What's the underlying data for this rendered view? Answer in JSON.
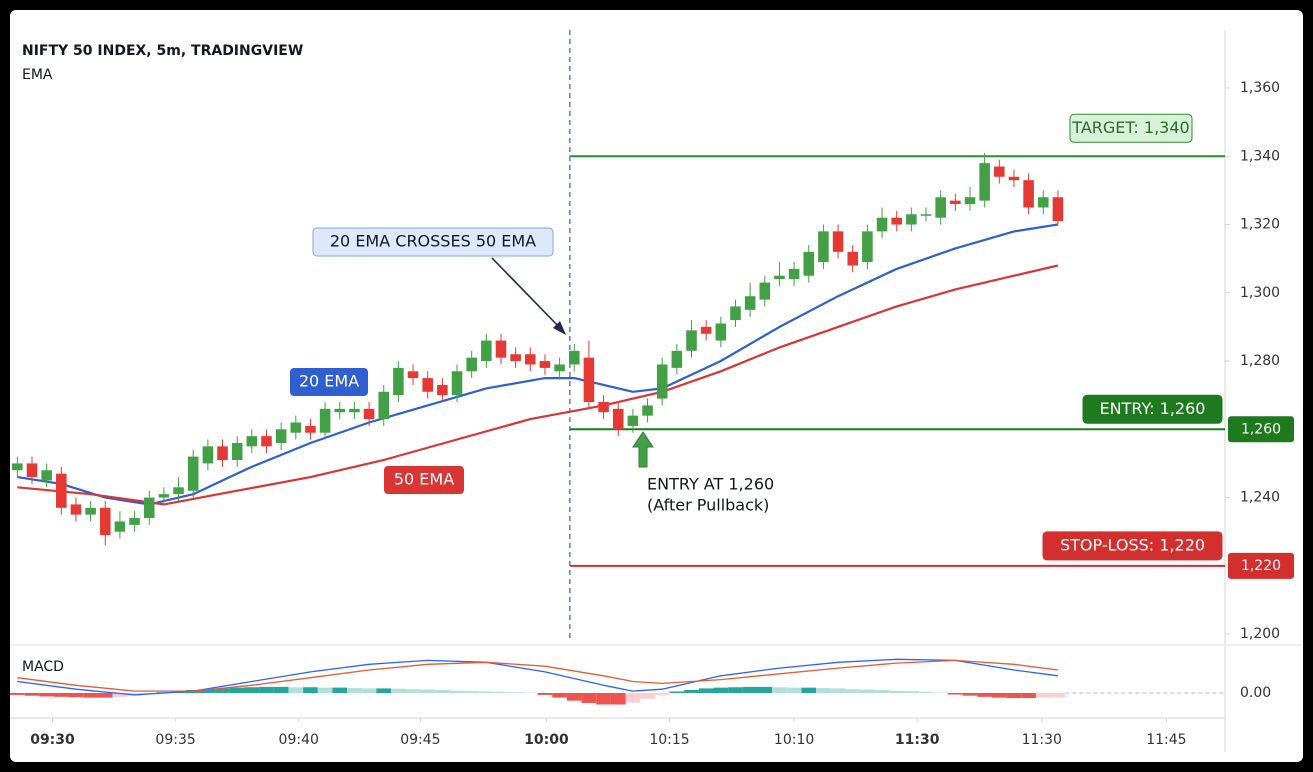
{
  "chart_data": {
    "type": "candlestick",
    "title": "NIFTY 50 INDEX, 5m, TRADINGVIEW",
    "subtitle": "EMA",
    "xlim": [
      -0.5,
      82.4
    ],
    "xticks": [
      {
        "value": 2.4,
        "label": "09:30"
      },
      {
        "value": 10.8,
        "label": "09:35"
      },
      {
        "value": 19.2,
        "label": "09:40"
      },
      {
        "value": 27.5,
        "label": "09:45"
      },
      {
        "value": 36.1,
        "label": "10:00"
      },
      {
        "value": 44.5,
        "label": "10:15"
      },
      {
        "value": 53,
        "label": "10:10"
      },
      {
        "value": 61.4,
        "label": "11:30"
      },
      {
        "value": 69.9,
        "label": "11:30"
      },
      {
        "value": 78.4,
        "label": "11:45"
      }
    ],
    "ylim": [
      1196.8,
      1377
    ],
    "yticks": [
      {
        "value": 1200,
        "label": "1,200"
      },
      {
        "value": 1220,
        "label": "1,220"
      },
      {
        "value": 1240,
        "label": "1,240"
      },
      {
        "value": 1260,
        "label": "1,260"
      },
      {
        "value": 1280,
        "label": "1,280"
      },
      {
        "value": 1300,
        "label": "1,300"
      },
      {
        "value": 1320,
        "label": "1,320"
      },
      {
        "value": 1340,
        "label": "1,340"
      },
      {
        "value": 1360,
        "label": "1,360"
      }
    ],
    "up_color": "#43a047",
    "down_color": "#e53935",
    "open": [
      1248,
      1250,
      1245,
      1247,
      1238,
      1235,
      1237,
      1230,
      1232,
      1234,
      1240,
      1241,
      1242,
      1250,
      1255,
      1251,
      1255,
      1258,
      1256,
      1259,
      1261,
      1259,
      1265,
      1265,
      1266,
      1263,
      1270,
      1277,
      1275,
      1273,
      1270,
      1277,
      1280,
      1286,
      1282,
      1282,
      1280,
      1277,
      1279,
      1281,
      1268,
      1266,
      1261,
      1264,
      1269,
      1278,
      1283,
      1290,
      1286,
      1292,
      1295,
      1298,
      1304,
      1304,
      1305,
      1309,
      1318,
      1312,
      1309,
      1318,
      1322,
      1320,
      1323,
      1322,
      1327,
      1326,
      1327,
      1337,
      1334,
      1333,
      1325,
      1328
    ],
    "high": [
      1252,
      1252,
      1250,
      1249,
      1240,
      1239,
      1239,
      1236,
      1236,
      1242,
      1243,
      1246,
      1254,
      1257,
      1257,
      1258,
      1260,
      1260,
      1262,
      1264,
      1263,
      1268,
      1268,
      1268,
      1268,
      1273,
      1280,
      1279,
      1277,
      1275,
      1279,
      1283,
      1288,
      1288,
      1284,
      1284,
      1282,
      1281,
      1285,
      1286,
      1270,
      1268,
      1266,
      1269,
      1281,
      1285,
      1292,
      1292,
      1293,
      1298,
      1303,
      1305,
      1309,
      1309,
      1314,
      1320,
      1320,
      1314,
      1320,
      1325,
      1324,
      1325,
      1325,
      1330,
      1329,
      1331,
      1341,
      1339,
      1336,
      1335,
      1330,
      1330
    ],
    "low": [
      1246,
      1244,
      1243,
      1235,
      1233,
      1233,
      1226,
      1228,
      1230,
      1232,
      1238,
      1239,
      1240,
      1248,
      1249,
      1249,
      1253,
      1253,
      1254,
      1257,
      1257,
      1257,
      1263,
      1263,
      1261,
      1261,
      1268,
      1273,
      1269,
      1268,
      1268,
      1275,
      1278,
      1279,
      1278,
      1277,
      1276,
      1275,
      1277,
      1266,
      1263,
      1258,
      1259,
      1262,
      1267,
      1276,
      1281,
      1286,
      1284,
      1290,
      1293,
      1296,
      1302,
      1302,
      1303,
      1307,
      1310,
      1306,
      1307,
      1316,
      1318,
      1318,
      1321,
      1320,
      1324,
      1324,
      1325,
      1332,
      1331,
      1323,
      1323,
      1320
    ],
    "close": [
      1250,
      1246,
      1248,
      1237,
      1235,
      1237,
      1229,
      1233,
      1234,
      1240,
      1241,
      1243,
      1252,
      1255,
      1251,
      1256,
      1258,
      1255,
      1260,
      1262,
      1259,
      1266,
      1266,
      1266,
      1263,
      1271,
      1278,
      1275,
      1271,
      1270,
      1277,
      1281,
      1286,
      1281,
      1280,
      1279,
      1278,
      1279,
      1283,
      1268,
      1265,
      1260,
      1264,
      1267,
      1279,
      1283,
      1289,
      1288,
      1291,
      1296,
      1299,
      1303,
      1305,
      1307,
      1312,
      1318,
      1312,
      1308,
      1318,
      1322,
      1320,
      1323,
      1323,
      1328,
      1326,
      1328,
      1338,
      1334,
      1333,
      1325,
      1328,
      1321
    ],
    "series": [
      {
        "name": "20 EMA",
        "color": "#2f5fd0",
        "x": [
          0,
          3,
          6,
          9,
          12,
          16,
          20,
          24,
          28,
          32,
          36,
          38,
          40,
          42,
          44,
          48,
          52,
          56,
          60,
          64,
          68,
          71
        ],
        "values": [
          1246,
          1244,
          1240,
          1238,
          1241,
          1249,
          1256,
          1262,
          1267,
          1272,
          1275,
          1275,
          1273,
          1271,
          1272,
          1280,
          1290,
          1299,
          1307,
          1313,
          1318,
          1320
        ]
      },
      {
        "name": "50 EMA",
        "color": "#d93535",
        "x": [
          0,
          5,
          10,
          15,
          20,
          25,
          30,
          35,
          40,
          44,
          48,
          52,
          56,
          60,
          64,
          68,
          71
        ],
        "values": [
          1243,
          1241,
          1238,
          1242,
          1246,
          1251,
          1257,
          1263,
          1267,
          1271,
          1277,
          1284,
          1290,
          1296,
          1301,
          1305,
          1308
        ]
      }
    ],
    "crossover_x": 37.7,
    "levels": [
      {
        "label": "TARGET: 1,340",
        "value": 1340,
        "color": "#2e8b2e"
      },
      {
        "label": "ENTRY: 1,260",
        "value": 1260,
        "color": "#1f7a1f",
        "axis_label": "1,260"
      },
      {
        "label": "STOP-LOSS: 1,220",
        "value": 1220,
        "color": "#d32f2f",
        "axis_label": "1,220"
      }
    ],
    "annotations": [
      {
        "text": "20 EMA CROSSES 50 EMA"
      },
      {
        "text": "ENTRY AT 1,260"
      },
      {
        "text": "(After Pullback)"
      }
    ],
    "macd": {
      "label": "MACD",
      "ylim": [
        -0.6,
        1.2
      ],
      "yticks": [
        {
          "value": 0,
          "label": "0.00"
        }
      ],
      "histogram": [
        -0.05,
        -0.07,
        -0.09,
        -0.1,
        -0.11,
        -0.12,
        -0.12,
        -0.1,
        -0.07,
        -0.03,
        0.02,
        0.05,
        0.08,
        0.1,
        0.12,
        0.14,
        0.15,
        0.16,
        0.16,
        0.15,
        0.15,
        0.14,
        0.14,
        0.13,
        0.12,
        0.12,
        0.11,
        0.1,
        0.09,
        0.08,
        0.06,
        0.05,
        0.04,
        0.03,
        0.02,
        0.01,
        -0.05,
        -0.12,
        -0.2,
        -0.26,
        -0.3,
        -0.3,
        -0.25,
        -0.15,
        -0.05,
        0.04,
        0.08,
        0.12,
        0.14,
        0.15,
        0.16,
        0.16,
        0.15,
        0.14,
        0.14,
        0.13,
        0.12,
        0.1,
        0.09,
        0.08,
        0.06,
        0.05,
        0.03,
        0.01,
        -0.04,
        -0.07,
        -0.1,
        -0.12,
        -0.13,
        -0.13,
        -0.12,
        -0.11
      ],
      "histogram_colors": [
        "#26a69a",
        "#b2dfdb",
        "#ef5350",
        "#ffcdd2"
      ],
      "series": [
        {
          "color": "#2962ff",
          "x": [
            0,
            4,
            8,
            12,
            16,
            20,
            24,
            28,
            32,
            36,
            40,
            42,
            44,
            48,
            52,
            56,
            60,
            64,
            68,
            71
          ],
          "values": [
            0.3,
            0.1,
            -0.05,
            0.05,
            0.3,
            0.55,
            0.75,
            0.85,
            0.8,
            0.55,
            0.2,
            0.05,
            0.1,
            0.45,
            0.65,
            0.8,
            0.88,
            0.85,
            0.6,
            0.45
          ]
        },
        {
          "color": "#e65a3a",
          "x": [
            0,
            4,
            8,
            12,
            16,
            20,
            24,
            28,
            32,
            36,
            40,
            42,
            44,
            48,
            52,
            56,
            60,
            64,
            68,
            71
          ],
          "values": [
            0.4,
            0.2,
            0.05,
            0.05,
            0.2,
            0.4,
            0.6,
            0.75,
            0.8,
            0.7,
            0.45,
            0.3,
            0.25,
            0.35,
            0.5,
            0.65,
            0.78,
            0.85,
            0.75,
            0.6
          ]
        }
      ]
    }
  }
}
